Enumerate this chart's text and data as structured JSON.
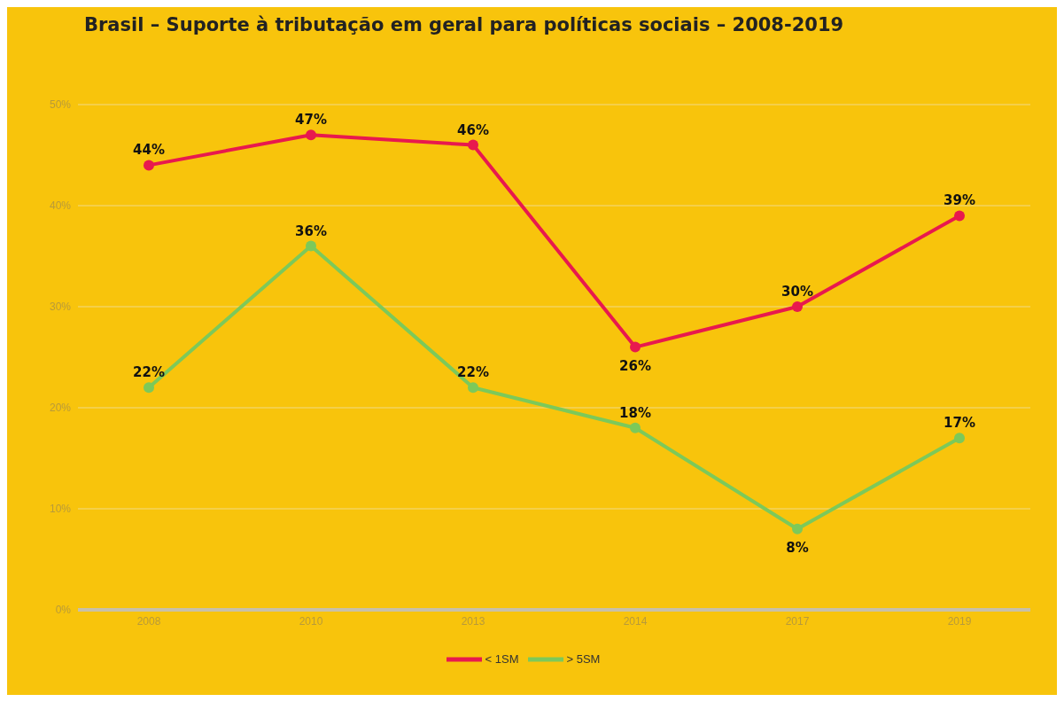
{
  "chart_data": {
    "type": "line",
    "title": "Brasil – Suporte à tributação em geral para políticas sociais – 2008-2019",
    "categories": [
      "2008",
      "2010",
      "2013",
      "2014",
      "2017",
      "2019"
    ],
    "series": [
      {
        "name": "< 1SM",
        "color": "#e8194e",
        "values": [
          44,
          47,
          46,
          26,
          30,
          39
        ],
        "value_labels": [
          "44%",
          "47%",
          "46%",
          "26%",
          "30%",
          "39%"
        ]
      },
      {
        "name": "> 5SM",
        "color": "#7cc95a",
        "values": [
          22,
          36,
          22,
          18,
          8,
          17
        ],
        "value_labels": [
          "22%",
          "36%",
          "22%",
          "18%",
          "8%",
          "17%"
        ]
      }
    ],
    "ylim": [
      0,
      50
    ],
    "yticks": [
      {
        "value": 0,
        "label": "0%"
      },
      {
        "value": 10,
        "label": "10%"
      },
      {
        "value": 20,
        "label": "20%"
      },
      {
        "value": 30,
        "label": "30%"
      },
      {
        "value": 40,
        "label": "40%"
      },
      {
        "value": 50,
        "label": "50%"
      }
    ],
    "grid": "y",
    "legend": "bottom",
    "marker": "circle",
    "line_style": "solid"
  }
}
